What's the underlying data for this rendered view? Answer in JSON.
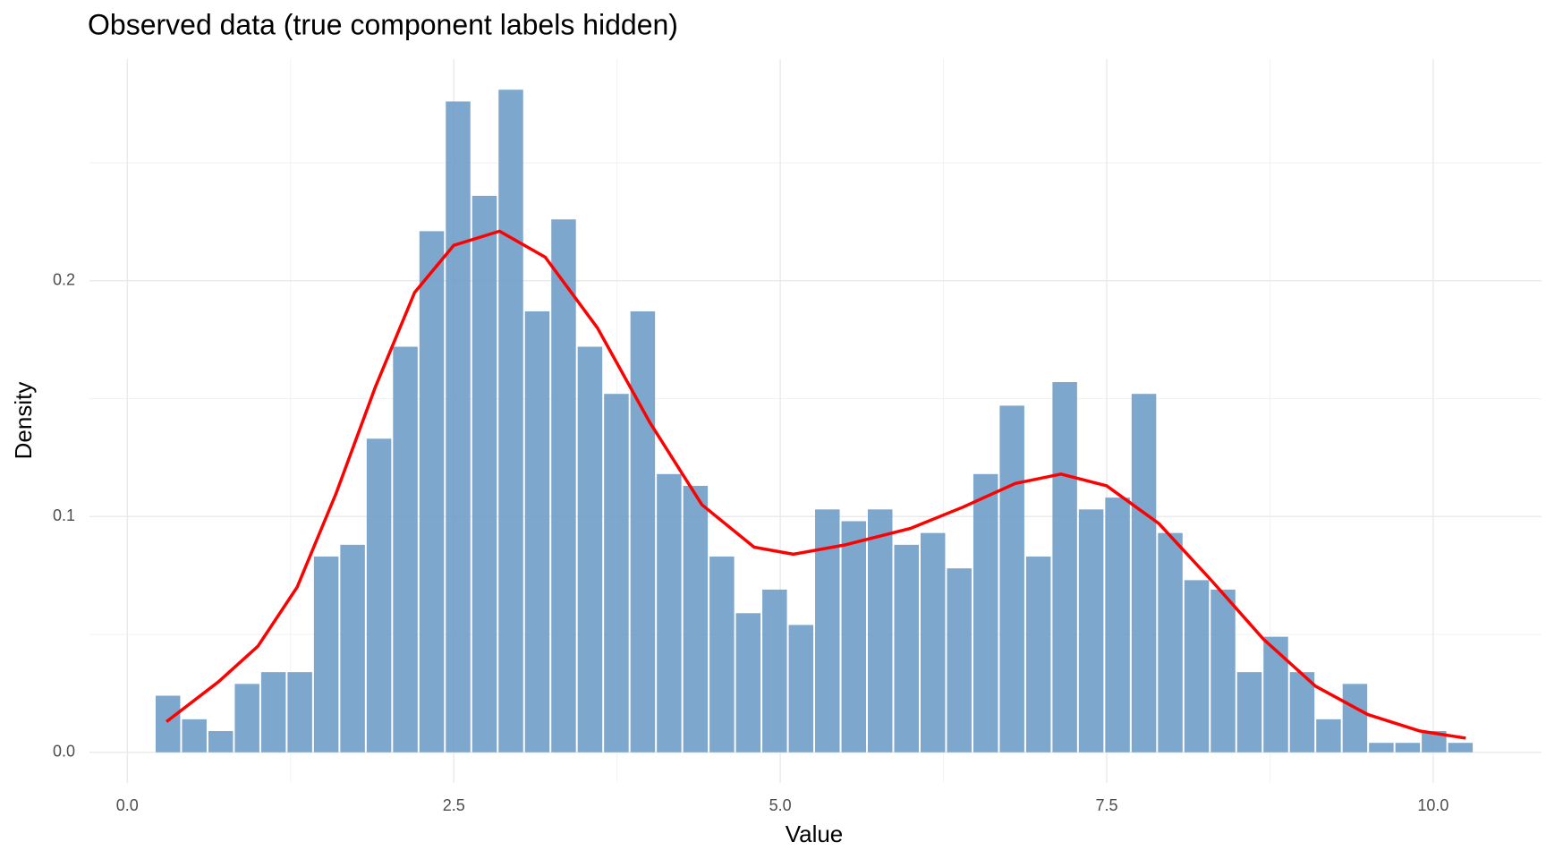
{
  "chart_data": {
    "type": "histogram",
    "title": "Observed data (true component labels hidden)",
    "xlabel": "Value",
    "ylabel": "Density",
    "bins": [
      0.21,
      0.412,
      0.614,
      0.816,
      1.018,
      1.22,
      1.422,
      1.624,
      1.826,
      2.028,
      2.23,
      2.432,
      2.634,
      2.836,
      3.038,
      3.24,
      3.442,
      3.644,
      3.846,
      4.048,
      4.25,
      4.452,
      4.654,
      4.856,
      5.058,
      5.26,
      5.462,
      5.664,
      5.866,
      6.068,
      6.27,
      6.472,
      6.674,
      6.876,
      7.078,
      7.28,
      7.482,
      7.684,
      7.886,
      8.088,
      8.29,
      8.492,
      8.694,
      8.896,
      9.098,
      9.3,
      9.502,
      9.704,
      9.906,
      10.108,
      10.31
    ],
    "values": [
      0.024,
      0.014,
      0.009,
      0.029,
      0.034,
      0.034,
      0.083,
      0.088,
      0.133,
      0.172,
      0.221,
      0.276,
      0.236,
      0.281,
      0.187,
      0.226,
      0.172,
      0.152,
      0.187,
      0.118,
      0.113,
      0.083,
      0.059,
      0.069,
      0.054,
      0.103,
      0.098,
      0.103,
      0.088,
      0.093,
      0.078,
      0.118,
      0.147,
      0.083,
      0.157,
      0.103,
      0.108,
      0.152,
      0.093,
      0.073,
      0.069,
      0.034,
      0.049,
      0.034,
      0.014,
      0.029,
      0.004,
      0.004,
      0.009,
      0.004
    ],
    "color": "#6f9dc7",
    "density": {
      "color": "#ff0000",
      "x": [
        0.3,
        0.7,
        1.0,
        1.3,
        1.6,
        1.9,
        2.2,
        2.5,
        2.85,
        3.2,
        3.6,
        4.0,
        4.4,
        4.8,
        5.1,
        5.5,
        6.0,
        6.4,
        6.8,
        7.15,
        7.5,
        7.9,
        8.3,
        8.7,
        9.1,
        9.5,
        9.9,
        10.25
      ],
      "values": [
        0.013,
        0.03,
        0.045,
        0.07,
        0.11,
        0.155,
        0.195,
        0.215,
        0.221,
        0.21,
        0.18,
        0.14,
        0.105,
        0.087,
        0.084,
        0.088,
        0.095,
        0.104,
        0.114,
        0.118,
        0.113,
        0.097,
        0.073,
        0.048,
        0.028,
        0.016,
        0.009,
        0.006
      ]
    },
    "xlim": [
      -0.29,
      10.83
    ],
    "ylim": [
      -0.013,
      0.294
    ],
    "xticks": [
      {
        "value": 0,
        "label": "0.0"
      },
      2.5,
      {
        "value": 5,
        "label": "5.0"
      },
      7.5,
      {
        "value": 10,
        "label": "10.0"
      }
    ],
    "yticks": [
      {
        "value": 0,
        "label": "0.0"
      },
      0.1,
      0.2
    ],
    "grid": true
  }
}
